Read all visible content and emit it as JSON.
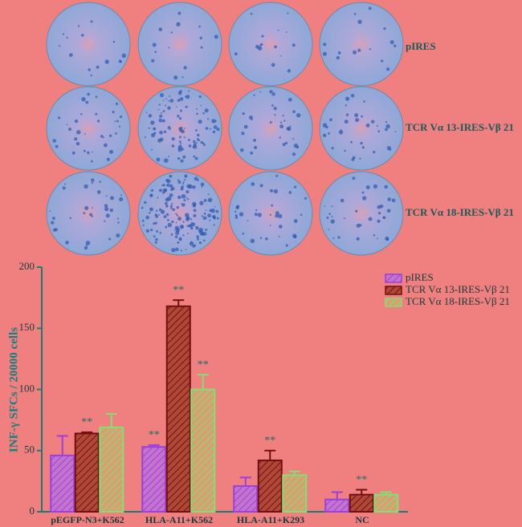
{
  "wells": {
    "row_labels": [
      "pIRES",
      "TCR Vα 13-IRES-Vβ 21",
      "TCR Vα 18-IRES-Vβ 21"
    ]
  },
  "chart_data": {
    "type": "bar",
    "y_label": "INF-γ SFCs / 20000 cells",
    "categories": [
      "pEGFP-N3+K562",
      "HLA-A11+K562",
      "HLA-A11+K293",
      "NC"
    ],
    "series": [
      {
        "name": "pIRES",
        "color": "#9a40e0",
        "fill": "#c474cc",
        "values": [
          46,
          53,
          21,
          10
        ],
        "errors": [
          16,
          1.5,
          7,
          6
        ],
        "markers": [
          null,
          "**",
          null,
          null
        ]
      },
      {
        "name": "TCR Vα 13-IRES-Vβ 21",
        "color": "#701010",
        "fill": "#b04838",
        "values": [
          64,
          168,
          42,
          14
        ],
        "errors": [
          1,
          5,
          8,
          4
        ],
        "markers": [
          "**",
          "**",
          "**",
          "**"
        ]
      },
      {
        "name": "TCR Vα 18-IRES-Vβ 21",
        "color": "#80e070",
        "fill": "#d8a070",
        "values": [
          69,
          100,
          30,
          14
        ],
        "errors": [
          11,
          12,
          3,
          2
        ],
        "markers": [
          null,
          "**",
          null,
          null
        ]
      }
    ],
    "ylim": [
      0,
      200
    ],
    "yticks": [
      0,
      50,
      100,
      150,
      200
    ],
    "legend": "top-right"
  }
}
